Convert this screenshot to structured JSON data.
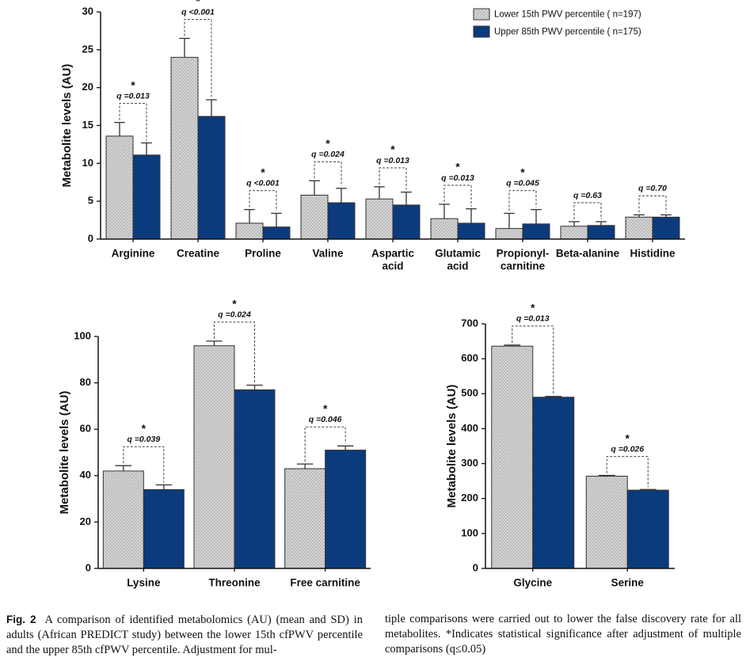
{
  "chart_data": [
    {
      "type": "bar",
      "ylabel": "Metabolite levels (AU)",
      "categories": [
        "Arginine",
        "Creatine",
        "Proline",
        "Valine",
        [
          "Aspartic",
          "acid"
        ],
        [
          "Glutamic",
          "acid"
        ],
        [
          "Propionyl-",
          "carnitine"
        ],
        "Beta-alanine",
        "Histidine"
      ],
      "series": [
        {
          "name": "Lower 15th PWV percentile ( n=197)",
          "color": "#d3d3d3",
          "pattern": "dots",
          "values": [
            13.6,
            24.0,
            2.1,
            5.8,
            5.3,
            2.7,
            1.4,
            1.7,
            2.9
          ],
          "errors": [
            1.8,
            2.5,
            1.8,
            1.9,
            1.6,
            1.9,
            2.0,
            0.6,
            0.3
          ]
        },
        {
          "name": "Upper 85th PWV percentile ( n=175)",
          "color": "#0b3b7c",
          "values": [
            11.1,
            16.2,
            1.6,
            4.8,
            4.5,
            2.1,
            2.0,
            1.8,
            2.9
          ],
          "errors": [
            1.6,
            2.2,
            1.8,
            1.9,
            1.7,
            1.9,
            1.9,
            0.5,
            0.3
          ]
        }
      ],
      "q_labels": [
        "q =0.013",
        "q <0.001",
        "q <0.001",
        "q =0.024",
        "q =0.013",
        "q =0.013",
        "q =0.045",
        "q =0.63",
        "q =0.70"
      ],
      "significance": [
        "*",
        "*",
        "*",
        "*",
        "*",
        "*",
        "*",
        null,
        null
      ],
      "ylim": [
        0,
        30
      ],
      "yticks": [
        0,
        5,
        10,
        15,
        20,
        25,
        30
      ],
      "legend": "upper right"
    },
    {
      "type": "bar",
      "ylabel": "Metabolite levels (AU)",
      "categories": [
        "Lysine",
        "Threonine",
        "Free carnitine"
      ],
      "series": [
        {
          "name": "Lower 15th PWV percentile ( n=197)",
          "color": "#d3d3d3",
          "pattern": "dots",
          "values": [
            42,
            96,
            43
          ],
          "errors": [
            2.3,
            2,
            2
          ]
        },
        {
          "name": "Upper 85th PWV percentile ( n=175)",
          "color": "#0b3b7c",
          "values": [
            34,
            77,
            51
          ],
          "errors": [
            2,
            2,
            1.8
          ]
        }
      ],
      "q_labels": [
        "q =0.039",
        "q =0.024",
        "q =0.046"
      ],
      "significance": [
        "*",
        "*",
        "*"
      ],
      "ylim": [
        0,
        100
      ],
      "yticks": [
        0,
        20,
        40,
        60,
        80,
        100
      ]
    },
    {
      "type": "bar",
      "ylabel": "Metabolite levels (AU)",
      "categories": [
        "Glycine",
        "Serine"
      ],
      "series": [
        {
          "name": "Lower 15th PWV percentile ( n=197)",
          "color": "#d3d3d3",
          "pattern": "dots",
          "values": [
            636,
            264
          ],
          "errors": [
            3,
            2
          ]
        },
        {
          "name": "Upper 85th PWV percentile ( n=175)",
          "color": "#0b3b7c",
          "values": [
            490,
            224
          ],
          "errors": [
            2,
            2
          ]
        }
      ],
      "q_labels": [
        "q =0.013",
        "q =0.026"
      ],
      "significance": [
        "*",
        "*"
      ],
      "ylim": [
        0,
        700
      ],
      "yticks": [
        0,
        100,
        200,
        300,
        400,
        500,
        600,
        700
      ]
    }
  ],
  "caption": {
    "label": "Fig. 2",
    "left": "A comparison of identified metabolomics (AU) (mean and SD) in adults (African PREDICT study) between the lower 15th cfPWV percentile and the upper 85th cfPWV percentile. Adjustment for mul-",
    "right": "tiple comparisons were carried out to lower the false discovery rate for all metabolites. *Indicates statistical significance after adjustment of multiple comparisons (q≤0.05)"
  }
}
